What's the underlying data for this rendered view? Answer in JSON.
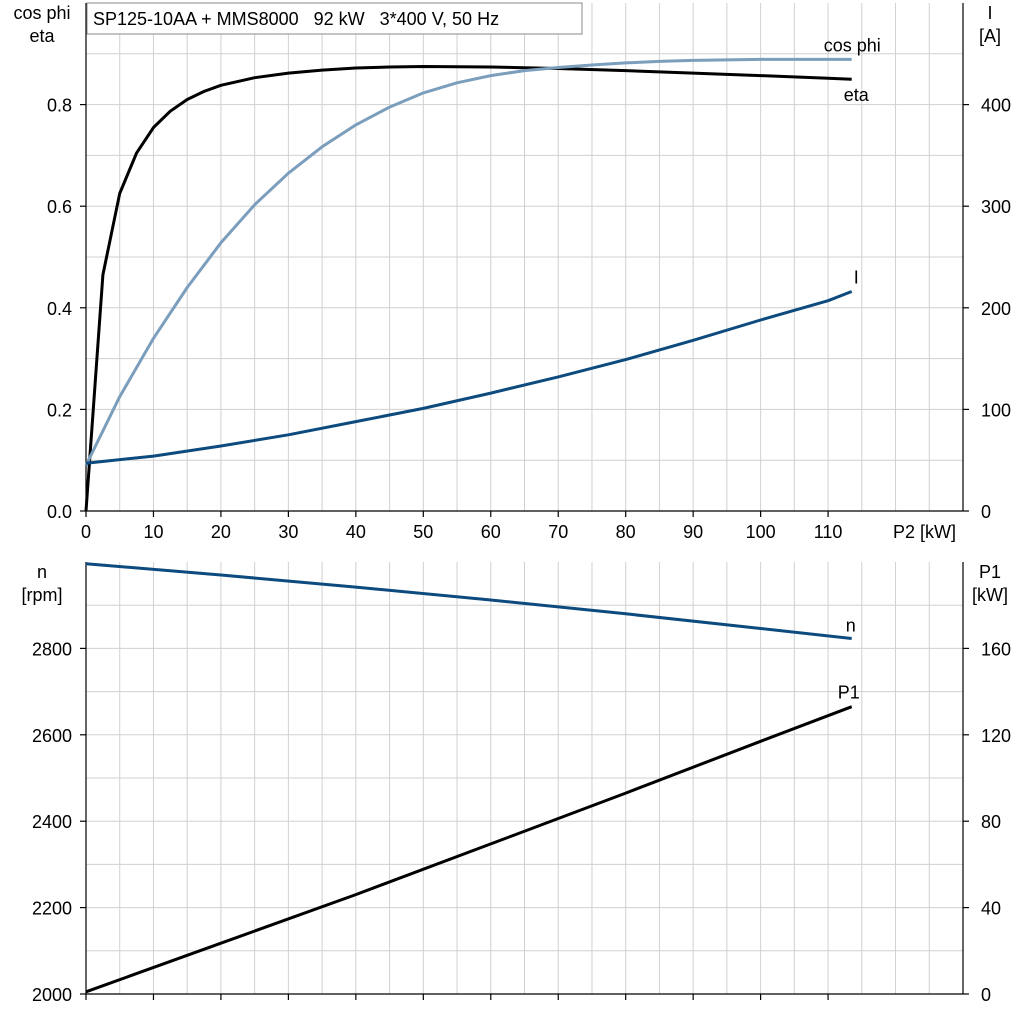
{
  "colors": {
    "eta": "#000000",
    "cos_phi": "#7b9ebd",
    "current": "#0d4a7e",
    "speed": "#0d4a7e",
    "p1": "#000000",
    "grid": "#d0d0d0"
  },
  "chart_data": [
    {
      "type": "line",
      "title": "SP125-10AA + MMS8000   92 kW   3*400 V, 50 Hz",
      "xlabel": "P2 [kW]",
      "ylabel_left": [
        "cos phi",
        "eta"
      ],
      "ylabel_right": [
        "I",
        "[A]"
      ],
      "xlim": [
        0,
        130
      ],
      "ylim_left": [
        0,
        1.0
      ],
      "ylim_right": [
        0,
        500
      ],
      "x_ticks": [
        0,
        10,
        20,
        30,
        40,
        50,
        60,
        70,
        80,
        90,
        100,
        110
      ],
      "y_ticks_left": [
        0.0,
        0.2,
        0.4,
        0.6,
        0.8
      ],
      "y_ticks_right": [
        0,
        100,
        200,
        300,
        400
      ],
      "grid": true,
      "series": [
        {
          "name": "eta",
          "axis": "left",
          "color_key": "eta",
          "x": [
            0,
            2.5,
            5,
            7.5,
            10,
            12.5,
            15,
            17.5,
            20,
            25,
            30,
            35,
            40,
            45,
            50,
            60,
            70,
            80,
            90,
            100,
            110,
            113.5
          ],
          "y": [
            0.0,
            0.465,
            0.625,
            0.705,
            0.755,
            0.787,
            0.81,
            0.826,
            0.838,
            0.853,
            0.862,
            0.868,
            0.872,
            0.874,
            0.875,
            0.874,
            0.871,
            0.867,
            0.862,
            0.857,
            0.852,
            0.85
          ]
        },
        {
          "name": "cos phi",
          "axis": "left",
          "color_key": "cos_phi",
          "x": [
            0,
            5,
            10,
            15,
            20,
            25,
            30,
            35,
            40,
            45,
            50,
            55,
            60,
            65,
            70,
            75,
            80,
            85,
            90,
            95,
            100,
            105,
            110,
            113.5
          ],
          "y": [
            0.09,
            0.225,
            0.34,
            0.44,
            0.528,
            0.603,
            0.665,
            0.717,
            0.76,
            0.795,
            0.823,
            0.843,
            0.857,
            0.867,
            0.873,
            0.878,
            0.882,
            0.885,
            0.887,
            0.888,
            0.889,
            0.889,
            0.889,
            0.889
          ]
        },
        {
          "name": "I",
          "axis": "right",
          "color_key": "current",
          "x": [
            0,
            10,
            20,
            30,
            40,
            50,
            60,
            70,
            80,
            90,
            100,
            110,
            113.5
          ],
          "y": [
            47,
            54,
            64,
            75,
            88,
            101,
            116,
            132,
            149,
            168,
            188,
            207,
            216
          ]
        }
      ]
    },
    {
      "type": "line",
      "title": "",
      "xlabel": "",
      "ylabel_left": [
        "n",
        "[rpm]"
      ],
      "ylabel_right": [
        "P1",
        "[kW]"
      ],
      "xlim": [
        0,
        130
      ],
      "ylim_left": [
        2000,
        3000
      ],
      "ylim_right": [
        0,
        200
      ],
      "x_ticks": [
        0,
        10,
        20,
        30,
        40,
        50,
        60,
        70,
        80,
        90,
        100,
        110
      ],
      "y_ticks_left": [
        2000,
        2200,
        2400,
        2600,
        2800
      ],
      "y_ticks_right": [
        0,
        40,
        80,
        120,
        160
      ],
      "grid": true,
      "series": [
        {
          "name": "n",
          "axis": "left",
          "color_key": "speed",
          "x": [
            0,
            20,
            40,
            60,
            80,
            100,
            113.5
          ],
          "y": [
            2996,
            2970,
            2942,
            2912,
            2880,
            2846,
            2823
          ]
        },
        {
          "name": "P1",
          "axis": "right",
          "color_key": "p1",
          "x": [
            0,
            20,
            40,
            60,
            80,
            100,
            113.5
          ],
          "y": [
            1,
            23.5,
            46,
            69.5,
            93,
            117,
            133
          ]
        }
      ]
    }
  ]
}
